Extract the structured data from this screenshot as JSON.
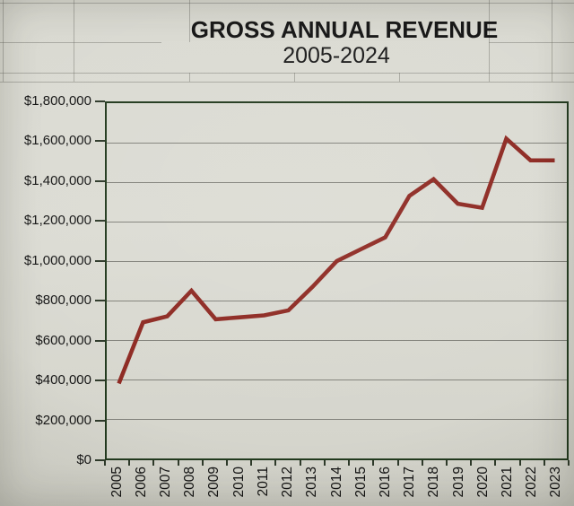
{
  "title": {
    "line1": "GROSS ANNUAL REVENUE",
    "line2": "2005-2024"
  },
  "chart_data": {
    "type": "line",
    "title": "GROSS ANNUAL REVENUE 2005-2024",
    "xlabel": "",
    "ylabel": "",
    "categories": [
      "2005",
      "2006",
      "2007",
      "2008",
      "2009",
      "2010",
      "2011",
      "2012",
      "2013",
      "2014",
      "2015",
      "2016",
      "2017",
      "2018",
      "2019",
      "2020",
      "2021",
      "2022",
      "2023"
    ],
    "values": [
      380000,
      690000,
      720000,
      850000,
      705000,
      715000,
      725000,
      750000,
      870000,
      1000000,
      1060000,
      1120000,
      1330000,
      1415000,
      1290000,
      1270000,
      1620000,
      1510000,
      1510000
    ],
    "ylim": [
      0,
      1800000
    ],
    "y_tick_step": 200000,
    "y_tick_labels": [
      "$1,800,000",
      "$1,600,000",
      "$1,400,000",
      "$1,200,000",
      "$1,000,000",
      "$800,000",
      "$600,000",
      "$400,000",
      "$200,000",
      "$0"
    ],
    "grid": true,
    "legend": false,
    "line_color": "#8e2a23",
    "line_width": 4.6,
    "plot_border_color": "#223a1e",
    "gridline_color": "#83837c",
    "tick_color": "#2e3a2a",
    "background_color": "#dadad2"
  }
}
